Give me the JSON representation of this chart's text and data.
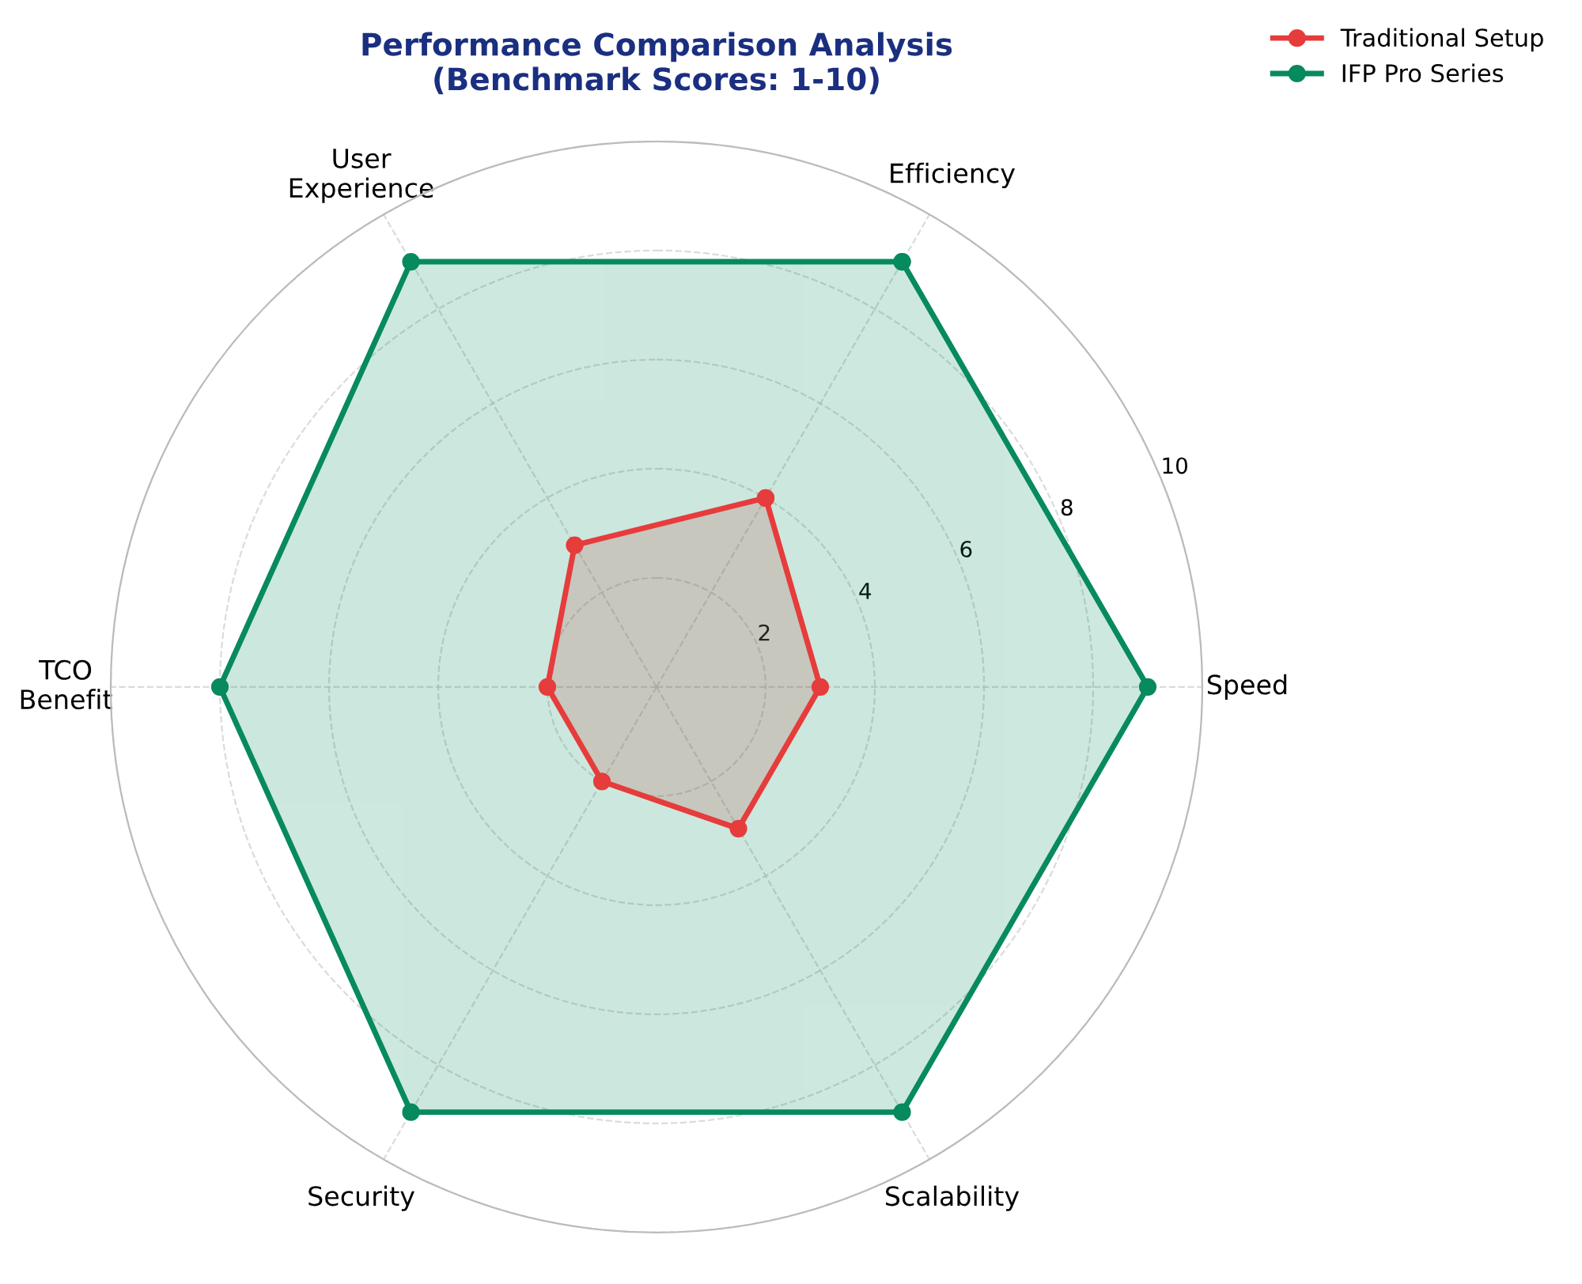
{
  "chart_data": {
    "type": "radar",
    "title": "Performance Comparison Analysis\n(Benchmark Scores: 1-10)",
    "categories": [
      "Efficiency",
      "Speed",
      "Scalability",
      "Security",
      "TCO\nBenefit",
      "User\nExperience"
    ],
    "series": [
      {
        "name": "Traditional Setup",
        "color": "#e63c3c",
        "values": [
          4,
          3,
          3,
          2,
          2,
          3
        ]
      },
      {
        "name": "IFP Pro Series",
        "color": "#078a5e",
        "values": [
          9,
          9,
          9,
          9,
          8,
          9
        ]
      }
    ],
    "ylim": [
      0,
      10
    ],
    "yticks": [
      2,
      4,
      6,
      8,
      10
    ],
    "grid": true,
    "legend": "top right",
    "marker": "circle",
    "line_style": "solid"
  }
}
